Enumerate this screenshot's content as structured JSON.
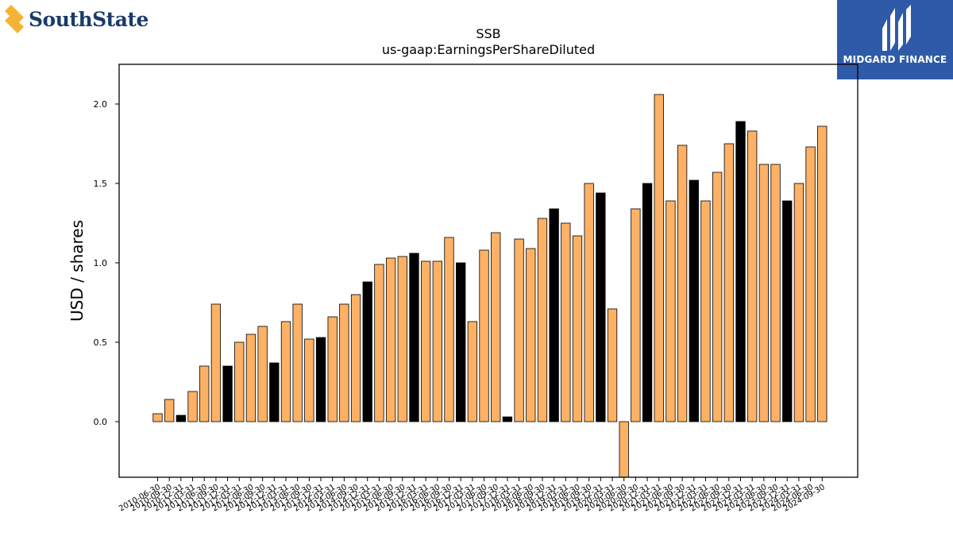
{
  "logos": {
    "left_text": "SouthState",
    "right_text": "MIDGARD FINANCE"
  },
  "colors": {
    "bar_default": "#fcb165",
    "bar_highlight": "#000000",
    "bar_edge": "#000000",
    "logo_right_bg": "#2e5aa8",
    "logo_left_text": "#1b3a6b",
    "logo_left_mark": "#f5b335"
  },
  "chart_data": {
    "type": "bar",
    "title": "SSB",
    "subtitle": "us-gaap:EarningsPerShareDiluted",
    "ylabel": "USD / shares",
    "xlabel": "",
    "ylim": [
      -0.35,
      2.25
    ],
    "yticks": [
      "0.0",
      "0.5",
      "1.0",
      "1.5",
      "2.0"
    ],
    "grid": false,
    "categories": [
      "2010-06-30",
      "2010-09-30",
      "2010-12-31",
      "2011-03-31",
      "2011-06-30",
      "2011-09-30",
      "2011-12-31",
      "2012-03-31",
      "2012-06-30",
      "2012-09-30",
      "2012-12-31",
      "2013-03-31",
      "2013-06-30",
      "2013-09-30",
      "2013-12-31",
      "2014-03-31",
      "2014-06-30",
      "2014-09-30",
      "2014-12-31",
      "2015-03-31",
      "2015-06-30",
      "2015-09-30",
      "2015-12-31",
      "2016-03-31",
      "2016-06-30",
      "2016-09-30",
      "2016-12-31",
      "2017-03-31",
      "2017-06-30",
      "2017-09-30",
      "2017-12-31",
      "2018-03-31",
      "2018-06-30",
      "2018-09-30",
      "2018-12-31",
      "2019-03-31",
      "2019-06-30",
      "2019-09-30",
      "2019-12-31",
      "2020-03-31",
      "2020-06-30",
      "2020-09-30",
      "2020-12-31",
      "2021-03-31",
      "2021-06-30",
      "2021-09-30",
      "2021-12-31",
      "2022-03-31",
      "2022-06-30",
      "2022-09-30",
      "2022-12-31",
      "2023-03-31",
      "2023-06-30",
      "2023-09-30",
      "2023-12-31",
      "2024-03-31",
      "2024-06-30",
      "2024-09-30"
    ],
    "values": [
      0.05,
      0.14,
      0.04,
      0.19,
      0.35,
      0.74,
      0.35,
      0.5,
      0.55,
      0.6,
      0.37,
      0.63,
      0.74,
      0.52,
      0.53,
      0.66,
      0.74,
      0.8,
      0.88,
      0.99,
      1.03,
      1.04,
      1.06,
      1.01,
      1.01,
      1.16,
      1.0,
      0.63,
      1.08,
      1.19,
      0.03,
      1.15,
      1.09,
      1.28,
      1.34,
      1.25,
      1.17,
      1.5,
      1.44,
      0.71,
      -0.35,
      1.34,
      1.5,
      2.06,
      1.39,
      1.74,
      1.52,
      1.39,
      1.57,
      1.75,
      1.89,
      1.83,
      1.62,
      1.62,
      1.39,
      1.5,
      1.73,
      1.86
    ],
    "highlight": [
      false,
      false,
      true,
      false,
      false,
      false,
      true,
      false,
      false,
      false,
      true,
      false,
      false,
      false,
      true,
      false,
      false,
      false,
      true,
      false,
      false,
      false,
      true,
      false,
      false,
      false,
      true,
      false,
      false,
      false,
      true,
      false,
      false,
      false,
      true,
      false,
      false,
      false,
      true,
      false,
      false,
      false,
      true,
      false,
      false,
      false,
      true,
      false,
      false,
      false,
      true,
      false,
      false,
      false,
      true,
      false,
      false,
      false
    ]
  }
}
